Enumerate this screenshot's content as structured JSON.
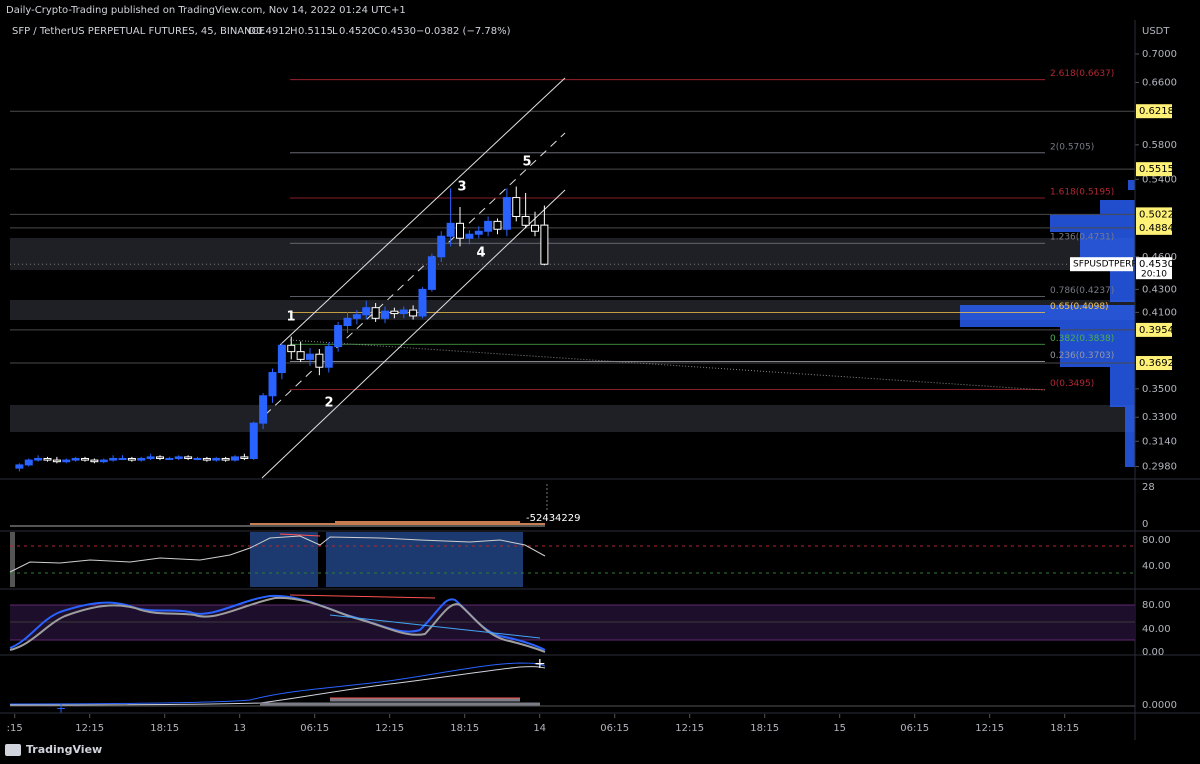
{
  "header": {
    "published": "Daily-Crypto-Trading published on TradingView.com, Nov 14, 2022 01:24 UTC+1",
    "symbol": "SFP / TetherUS PERPETUAL FUTURES, 45, BINANCE",
    "o_label": "O",
    "o": "0.4912",
    "h_label": "H",
    "h": "0.5115",
    "l_label": "L",
    "l": "0.4520",
    "c_label": "C",
    "c": "0.4530",
    "change": "−0.0382 (−7.78%)"
  },
  "chart_data": {
    "type": "candlestick",
    "currency": "USDT",
    "log_scale": true,
    "up_color": "#2962ff",
    "down_color": "#ffffff",
    "categories": [
      null,
      null,
      null,
      null,
      null,
      null,
      null,
      null,
      null,
      null,
      null,
      null,
      null,
      null,
      null,
      null,
      null,
      null,
      null,
      null,
      null,
      null,
      null,
      null,
      null,
      null,
      null,
      null,
      null,
      null,
      null,
      null,
      null,
      null,
      null,
      null,
      null,
      null,
      null,
      null,
      null,
      null,
      null,
      null,
      null,
      null,
      null,
      null,
      null,
      null,
      null,
      null,
      null,
      null,
      null,
      null,
      null
    ],
    "open": [
      0.297,
      0.299,
      0.302,
      0.303,
      0.302,
      0.301,
      0.302,
      0.303,
      0.302,
      0.301,
      0.302,
      0.303,
      0.303,
      0.302,
      0.303,
      0.304,
      0.303,
      0.303,
      0.304,
      0.303,
      0.303,
      0.302,
      0.303,
      0.302,
      0.304,
      0.303,
      0.326,
      0.345,
      0.362,
      0.383,
      0.378,
      0.372,
      0.376,
      0.366,
      0.382,
      0.399,
      0.405,
      0.408,
      0.414,
      0.405,
      0.411,
      0.409,
      0.412,
      0.407,
      0.43,
      0.46,
      0.48,
      0.493,
      0.478,
      0.482,
      0.485,
      0.495,
      0.487,
      0.52,
      0.5,
      0.491,
      0.4912
    ],
    "high": [
      0.3,
      0.303,
      0.305,
      0.304,
      0.304,
      0.303,
      0.304,
      0.304,
      0.303,
      0.303,
      0.305,
      0.305,
      0.304,
      0.304,
      0.306,
      0.305,
      0.304,
      0.305,
      0.305,
      0.304,
      0.304,
      0.304,
      0.304,
      0.305,
      0.306,
      0.327,
      0.347,
      0.365,
      0.385,
      0.39,
      0.386,
      0.381,
      0.38,
      0.385,
      0.402,
      0.41,
      0.412,
      0.42,
      0.418,
      0.415,
      0.414,
      0.415,
      0.416,
      0.432,
      0.463,
      0.485,
      0.53,
      0.51,
      0.486,
      0.49,
      0.5,
      0.498,
      0.53,
      0.532,
      0.525,
      0.505,
      0.5115
    ],
    "low": [
      0.295,
      0.298,
      0.301,
      0.301,
      0.3,
      0.3,
      0.301,
      0.301,
      0.3,
      0.3,
      0.301,
      0.302,
      0.301,
      0.301,
      0.302,
      0.302,
      0.302,
      0.302,
      0.302,
      0.302,
      0.301,
      0.301,
      0.301,
      0.301,
      0.302,
      0.302,
      0.322,
      0.34,
      0.357,
      0.372,
      0.37,
      0.367,
      0.36,
      0.362,
      0.378,
      0.393,
      0.4,
      0.404,
      0.402,
      0.401,
      0.405,
      0.405,
      0.404,
      0.405,
      0.428,
      0.455,
      0.47,
      0.47,
      0.472,
      0.478,
      0.48,
      0.482,
      0.48,
      0.495,
      0.488,
      0.48,
      0.452
    ],
    "close": [
      0.299,
      0.302,
      0.303,
      0.302,
      0.301,
      0.302,
      0.303,
      0.302,
      0.301,
      0.302,
      0.303,
      0.303,
      0.302,
      0.303,
      0.304,
      0.303,
      0.303,
      0.304,
      0.303,
      0.303,
      0.302,
      0.303,
      0.302,
      0.304,
      0.303,
      0.326,
      0.345,
      0.362,
      0.383,
      0.378,
      0.372,
      0.376,
      0.366,
      0.382,
      0.399,
      0.405,
      0.408,
      0.414,
      0.405,
      0.411,
      0.409,
      0.412,
      0.407,
      0.43,
      0.46,
      0.48,
      0.493,
      0.478,
      0.482,
      0.485,
      0.495,
      0.487,
      0.52,
      0.5,
      0.491,
      0.485,
      0.453
    ],
    "ylim": [
      0.291,
      0.751
    ],
    "yticks": [
      {
        "value": 0.7,
        "label": "0.7000"
      },
      {
        "value": 0.66,
        "label": "0.6600"
      },
      {
        "value": 0.58,
        "label": "0.5800"
      },
      {
        "value": 0.54,
        "label": "0.5400"
      },
      {
        "value": 0.46,
        "label": "0.4600"
      },
      {
        "value": 0.43,
        "label": "0.4300"
      },
      {
        "value": 0.41,
        "label": "0.4100"
      },
      {
        "value": 0.35,
        "label": "0.3500"
      },
      {
        "value": 0.33,
        "label": "0.3300"
      },
      {
        "value": 0.314,
        "label": "0.3140"
      },
      {
        "value": 0.298,
        "label": "0.2980"
      }
    ],
    "xlim": [
      -1,
      119
    ],
    "xticks": [
      {
        "value": -0.5,
        "label": ":15"
      },
      {
        "value": 7.5,
        "label": "12:15"
      },
      {
        "value": 15.5,
        "label": "18:15"
      },
      {
        "value": 23.5,
        "label": "13"
      },
      {
        "value": 31.5,
        "label": "06:15"
      },
      {
        "value": 39.5,
        "label": "12:15"
      },
      {
        "value": 47.5,
        "label": "18:15"
      },
      {
        "value": 55.5,
        "label": "14"
      },
      {
        "value": 63.5,
        "label": "06:15"
      },
      {
        "value": 71.5,
        "label": "12:15"
      },
      {
        "value": 79.5,
        "label": "18:15"
      },
      {
        "value": 87.5,
        "label": "15"
      },
      {
        "value": 95.5,
        "label": "06:15"
      },
      {
        "value": 103.5,
        "label": "12:15"
      },
      {
        "value": 111.5,
        "label": "18:15"
      }
    ],
    "key_levels": [
      {
        "value": 0.6218,
        "label": "0.6218"
      },
      {
        "value": 0.5515,
        "label": "0.5515"
      },
      {
        "value": 0.5022,
        "label": "0.5022"
      },
      {
        "value": 0.4884,
        "label": "0.4884"
      },
      {
        "value": 0.3954,
        "label": "0.3954"
      },
      {
        "value": 0.3692,
        "label": "0.3692"
      }
    ],
    "key_level_color": "#fff176",
    "fib_levels": [
      {
        "value": 0.6637,
        "label": "2.618(0.6637)",
        "color": "#b22833"
      },
      {
        "value": 0.5705,
        "label": "2(0.5705)",
        "color": "#787b86"
      },
      {
        "value": 0.5195,
        "label": "1.618(0.5195)",
        "color": "#b22833"
      },
      {
        "value": 0.4731,
        "label": "1.236(0.4731)",
        "color": "#787b86"
      },
      {
        "value": 0.4237,
        "label": "0.786(0.4237)",
        "color": "#787b86"
      },
      {
        "value": 0.4098,
        "label": "0.65(0.4098)",
        "color": "#f7c548"
      },
      {
        "value": 0.3838,
        "label": "0.382(0.3838)",
        "color": "#4caf50"
      },
      {
        "value": 0.3703,
        "label": "0.236(0.3703)",
        "color": "#9598a1"
      },
      {
        "value": 0.3495,
        "label": "0(0.3495)",
        "color": "#b22833"
      }
    ],
    "current_price": {
      "value": 0.453,
      "label": "0.4530"
    },
    "symbol_tag": "SFPUSDTPERP",
    "countdown": "20:10",
    "wave_labels": [
      "1",
      "2",
      "3",
      "4",
      "5"
    ]
  },
  "panels": {
    "volume_ticks": [
      "28",
      "0"
    ],
    "volume_last": "-52434229",
    "rsi_ticks": [
      "80.00",
      "40.00"
    ],
    "stoch_ticks": [
      "80.00",
      "40.00",
      "0.00"
    ],
    "macd_ticks": [
      "0.0000"
    ]
  },
  "footer": {
    "brand": "TradingView"
  }
}
